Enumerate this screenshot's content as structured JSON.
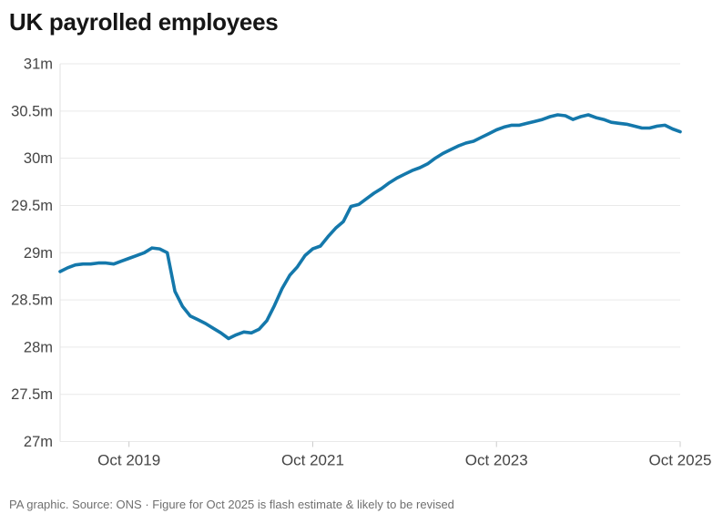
{
  "title": "UK payrolled employees",
  "footer": "PA graphic. Source: ONS · Figure for Oct 2025 is flash estimate & likely to be revised",
  "colors": {
    "line": "#1478ab",
    "grid": "#e9e9e9",
    "axis_border": "#e2e2e2",
    "tick_mark": "#cccccc",
    "axis_text": "#454545",
    "title_text": "#161616",
    "footer_text": "#6f6f6f",
    "background": "#ffffff"
  },
  "chart_data": {
    "type": "line",
    "title": "UK payrolled employees",
    "series_name": "UK payrolled employees (millions)",
    "unit": "millions of people",
    "grid": "horizontal",
    "legend": "none",
    "ylim": [
      27,
      31
    ],
    "y_ticks": [
      27,
      27.5,
      28,
      28.5,
      29,
      29.5,
      30,
      30.5,
      31
    ],
    "y_tick_labels": [
      "27m",
      "27.5m",
      "28m",
      "28.5m",
      "29m",
      "29.5m",
      "30m",
      "30.5m",
      "31m"
    ],
    "x_tick_positions": [
      "2019-10",
      "2021-10",
      "2023-10",
      "2025-10"
    ],
    "x_tick_labels": [
      "Oct 2019",
      "Oct 2021",
      "Oct 2023",
      "Oct 2025"
    ],
    "x": [
      "2019-01",
      "2019-02",
      "2019-03",
      "2019-04",
      "2019-05",
      "2019-06",
      "2019-07",
      "2019-08",
      "2019-09",
      "2019-10",
      "2019-11",
      "2019-12",
      "2020-01",
      "2020-02",
      "2020-03",
      "2020-04",
      "2020-05",
      "2020-06",
      "2020-07",
      "2020-08",
      "2020-09",
      "2020-10",
      "2020-11",
      "2020-12",
      "2021-01",
      "2021-02",
      "2021-03",
      "2021-04",
      "2021-05",
      "2021-06",
      "2021-07",
      "2021-08",
      "2021-09",
      "2021-10",
      "2021-11",
      "2021-12",
      "2022-01",
      "2022-02",
      "2022-03",
      "2022-04",
      "2022-05",
      "2022-06",
      "2022-07",
      "2022-08",
      "2022-09",
      "2022-10",
      "2022-11",
      "2022-12",
      "2023-01",
      "2023-02",
      "2023-03",
      "2023-04",
      "2023-05",
      "2023-06",
      "2023-07",
      "2023-08",
      "2023-09",
      "2023-10",
      "2023-11",
      "2023-12",
      "2024-01",
      "2024-02",
      "2024-03",
      "2024-04",
      "2024-05",
      "2024-06",
      "2024-07",
      "2024-08",
      "2024-09",
      "2024-10",
      "2024-11",
      "2024-12",
      "2025-01",
      "2025-02",
      "2025-03",
      "2025-04",
      "2025-05",
      "2025-06",
      "2025-07",
      "2025-08",
      "2025-09",
      "2025-10"
    ],
    "values": [
      28.8,
      28.84,
      28.87,
      28.88,
      28.88,
      28.89,
      28.89,
      28.88,
      28.91,
      28.94,
      28.97,
      29.0,
      29.05,
      29.04,
      29.0,
      28.59,
      28.43,
      28.33,
      28.29,
      28.25,
      28.2,
      28.15,
      28.09,
      28.13,
      28.16,
      28.15,
      28.19,
      28.28,
      28.44,
      28.62,
      28.76,
      28.85,
      28.97,
      29.04,
      29.07,
      29.17,
      29.26,
      29.33,
      29.49,
      29.51,
      29.57,
      29.63,
      29.68,
      29.74,
      29.79,
      29.83,
      29.87,
      29.9,
      29.94,
      30.0,
      30.05,
      30.09,
      30.13,
      30.16,
      30.18,
      30.22,
      30.26,
      30.3,
      30.33,
      30.35,
      30.35,
      30.37,
      30.39,
      30.41,
      30.44,
      30.46,
      30.45,
      30.41,
      30.44,
      30.46,
      30.43,
      30.41,
      30.38,
      30.37,
      30.36,
      30.34,
      30.32,
      30.32,
      30.34,
      30.35,
      30.31,
      30.28
    ],
    "annotation": "Figure for Oct 2025 is flash estimate & likely to be revised"
  }
}
